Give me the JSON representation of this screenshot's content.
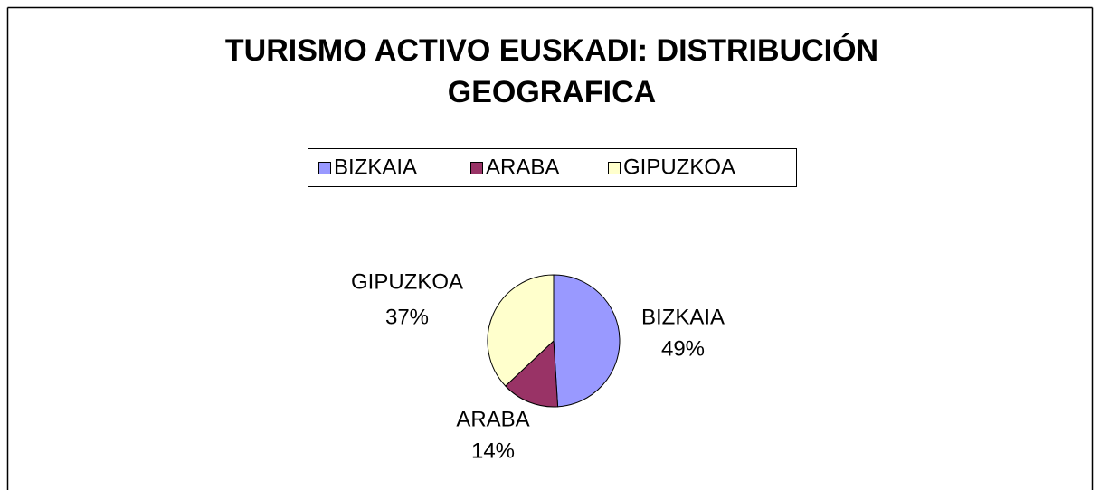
{
  "chart_data": {
    "type": "pie",
    "title": "TURISMO ACTIVO EUSKADI: DISTRIBUCIÓN GEOGRAFICA",
    "categories": [
      "BIZKAIA",
      "ARABA",
      "GIPUZKOA"
    ],
    "values": [
      49,
      14,
      37
    ],
    "value_labels": [
      "49%",
      "14%",
      "37%"
    ],
    "colors": [
      "#9999ff",
      "#993366",
      "#ffffcc"
    ],
    "legend": "top"
  }
}
